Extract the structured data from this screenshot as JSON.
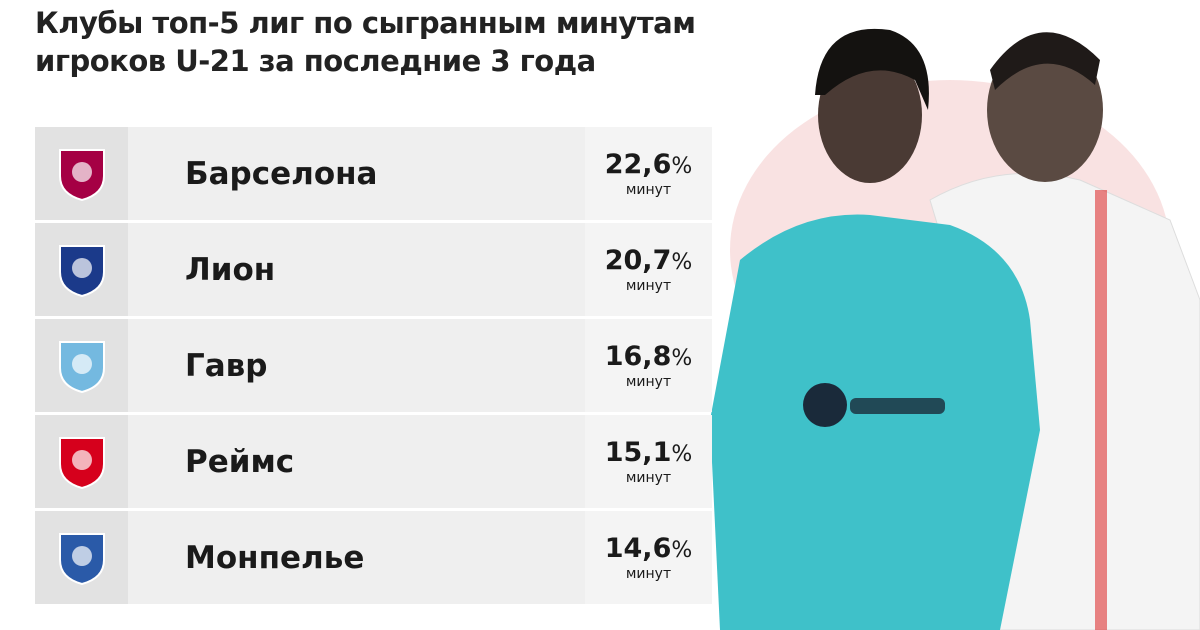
{
  "title_lines": [
    "Клубы топ-5 лиг по сыгранным минутам",
    "игроков U-21 за последние 3 года"
  ],
  "table": {
    "rows": [
      {
        "club": "Барселона",
        "value": "22,6",
        "unit": "%",
        "note": "минут"
      },
      {
        "club": "Лион",
        "value": "20,7",
        "unit": "%",
        "note": "минут"
      },
      {
        "club": "Гавр",
        "value": "16,8",
        "unit": "%",
        "note": "минут"
      },
      {
        "club": "Реймс",
        "value": "15,1",
        "unit": "%",
        "note": "минут"
      },
      {
        "club": "Монпелье",
        "value": "14,6",
        "unit": "%",
        "note": "минут"
      }
    ]
  }
}
